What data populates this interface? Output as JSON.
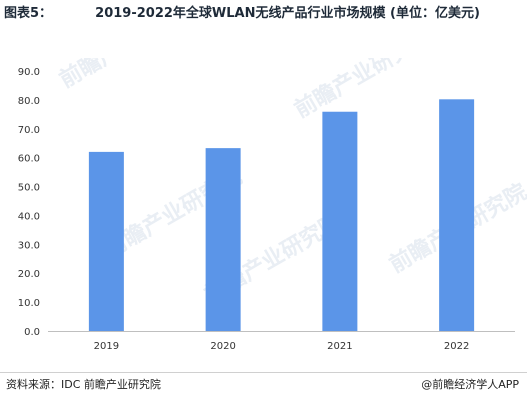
{
  "title": {
    "prefix": "图表5：",
    "text": "2019-2022年全球WLAN无线产品行业市场规模 (单位：亿美元)"
  },
  "footer": {
    "source": "资料来源：IDC 前瞻产业研究院",
    "credit": "@前瞻经济学人APP"
  },
  "watermark": {
    "text": "前瞻产业研究院"
  },
  "colors": {
    "bar": "#5b95e8",
    "axis": "#bfbfbf",
    "tick_text": "#333333",
    "watermark": "#e9eef4"
  },
  "chart_data": {
    "type": "bar",
    "categories": [
      "2019",
      "2020",
      "2021",
      "2022"
    ],
    "values": [
      62.0,
      63.3,
      75.9,
      80.2
    ],
    "ylim": [
      0,
      90
    ],
    "yticks": [
      "0.0",
      "10.0",
      "20.0",
      "30.0",
      "40.0",
      "50.0",
      "60.0",
      "70.0",
      "80.0",
      "90.0"
    ],
    "title": "2019-2022年全球WLAN无线产品行业市场规模 (单位：亿美元)",
    "xlabel": "",
    "ylabel": "",
    "grid": false,
    "legend": "none"
  }
}
